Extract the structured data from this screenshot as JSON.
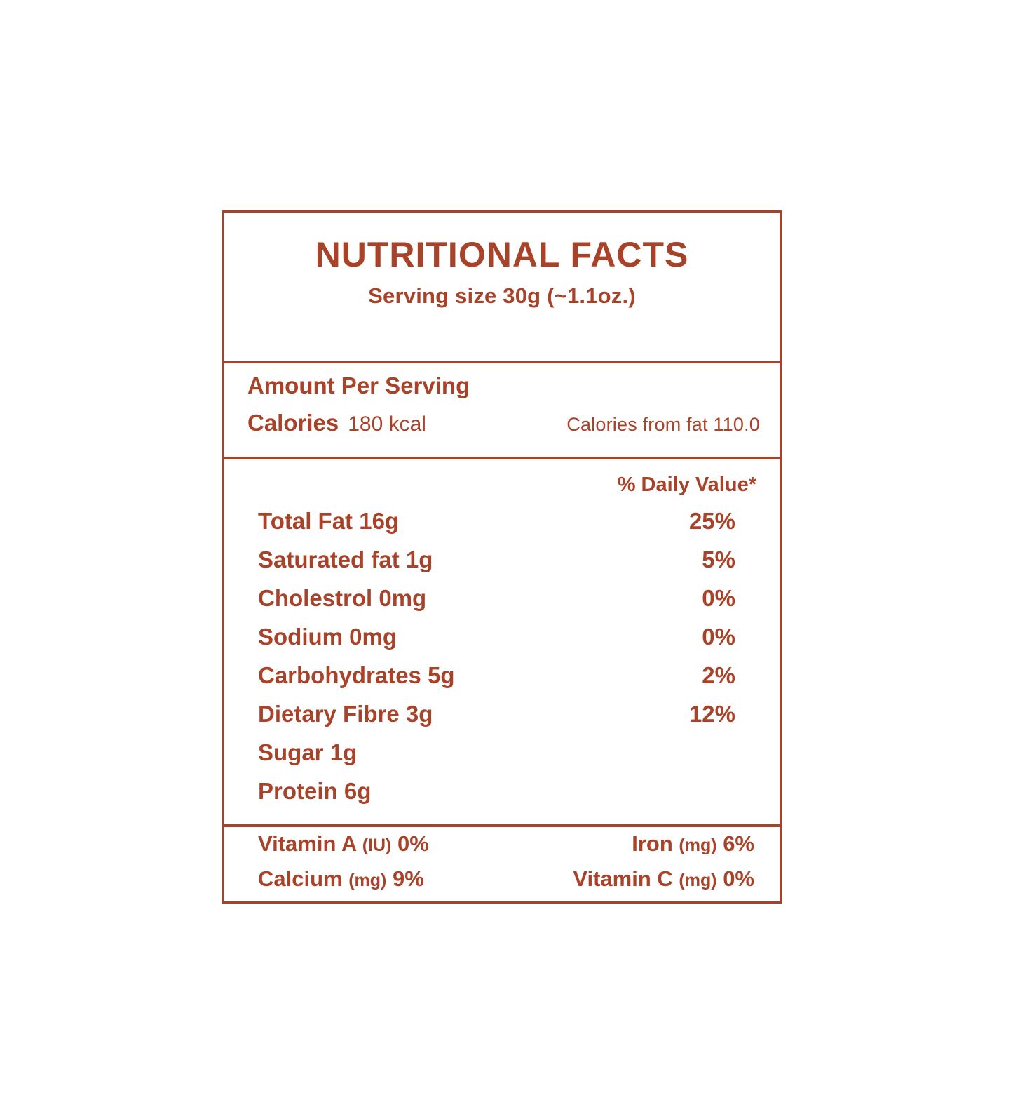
{
  "label_color": "#A8432A",
  "header": {
    "title": "NUTRITIONAL FACTS",
    "serving_size": "Serving size 30g (~1.1oz.)"
  },
  "per_serving": {
    "heading": "Amount Per Serving",
    "calories_label": "Calories",
    "calories_value": "180 kcal",
    "calories_from_fat": "Calories from fat 110.0"
  },
  "daily_values": {
    "column_header": "% Daily Value*",
    "rows": [
      {
        "label": "Total Fat 16g",
        "percent": "25%"
      },
      {
        "label": "Saturated fat 1g",
        "percent": "5%"
      },
      {
        "label": "Cholestrol 0mg",
        "percent": "0%"
      },
      {
        "label": "Sodium 0mg",
        "percent": "0%"
      },
      {
        "label": "Carbohydrates 5g",
        "percent": "2%"
      },
      {
        "label": "Dietary Fibre 3g",
        "percent": "12%"
      },
      {
        "label": "Sugar 1g",
        "percent": ""
      },
      {
        "label": "Protein 6g",
        "percent": ""
      }
    ]
  },
  "micronutrients": {
    "rows": [
      {
        "left": {
          "name": "Vitamin A",
          "unit": "(IU)",
          "value": "0%"
        },
        "right": {
          "name": "Iron",
          "unit": "(mg)",
          "value": "6%"
        }
      },
      {
        "left": {
          "name": "Calcium",
          "unit": "(mg)",
          "value": "9%"
        },
        "right": {
          "name": "Vitamin C",
          "unit": "(mg)",
          "value": "0%"
        }
      }
    ]
  }
}
